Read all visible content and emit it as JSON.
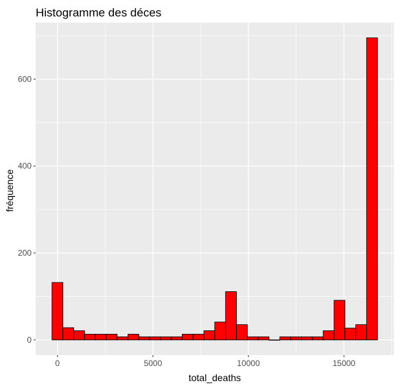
{
  "chart_data": {
    "type": "bar",
    "subtype": "histogram",
    "title": "Histogramme des déces",
    "xlabel": "total_deaths",
    "ylabel": "fréquence",
    "bin_width": 568,
    "bins": [
      {
        "center": 0,
        "count": 132
      },
      {
        "center": 568,
        "count": 28
      },
      {
        "center": 1136,
        "count": 21
      },
      {
        "center": 1704,
        "count": 13
      },
      {
        "center": 2272,
        "count": 13
      },
      {
        "center": 2840,
        "count": 13
      },
      {
        "center": 3408,
        "count": 7
      },
      {
        "center": 3976,
        "count": 13
      },
      {
        "center": 4544,
        "count": 7
      },
      {
        "center": 5112,
        "count": 7
      },
      {
        "center": 5680,
        "count": 7
      },
      {
        "center": 6248,
        "count": 7
      },
      {
        "center": 6816,
        "count": 13
      },
      {
        "center": 7384,
        "count": 13
      },
      {
        "center": 7952,
        "count": 21
      },
      {
        "center": 8520,
        "count": 41
      },
      {
        "center": 9088,
        "count": 111
      },
      {
        "center": 9656,
        "count": 35
      },
      {
        "center": 10224,
        "count": 7
      },
      {
        "center": 10792,
        "count": 7
      },
      {
        "center": 11360,
        "count": 0
      },
      {
        "center": 11928,
        "count": 7
      },
      {
        "center": 12496,
        "count": 7
      },
      {
        "center": 13064,
        "count": 7
      },
      {
        "center": 13632,
        "count": 7
      },
      {
        "center": 14200,
        "count": 21
      },
      {
        "center": 14768,
        "count": 91
      },
      {
        "center": 15336,
        "count": 27
      },
      {
        "center": 15904,
        "count": 35
      },
      {
        "center": 16472,
        "count": 695
      }
    ],
    "xlim": [
      -1140,
      17612
    ],
    "ylim": [
      -35,
      730
    ],
    "x_ticks": [
      0,
      5000,
      10000,
      15000
    ],
    "y_ticks": [
      0,
      200,
      400,
      600
    ],
    "grid": true,
    "fill_color": "#ff0000",
    "stroke_color": "#000000",
    "panel_background": "#ebebeb",
    "grid_color": "#ffffff"
  }
}
